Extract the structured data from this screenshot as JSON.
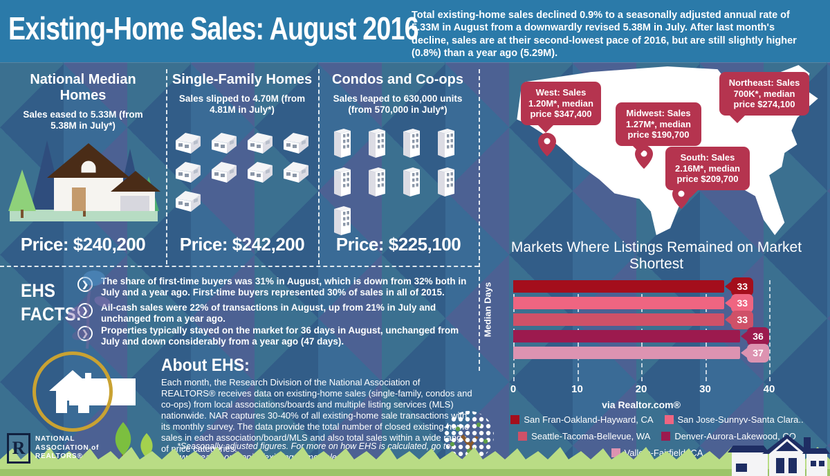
{
  "header": {
    "title": "Existing-Home Sales: August 2016",
    "intro": "Total existing-home sales declined 0.9% to a seasonally adjusted annual rate of 5.33M in August from a downwardly revised 5.38M in July. After last month's decline, sales are at their second-lowest pace of 2016, but are still slightly higher (0.8%) than a year ago (5.29M)."
  },
  "columns": [
    {
      "title": "National Median Homes",
      "subtitle": "Sales eased to 5.33M (from 5.38M in July*)",
      "price": "Price: $240,200"
    },
    {
      "title": "Single-Family Homes",
      "subtitle": "Sales slipped to 4.70M (from 4.81M in July*)",
      "price": "Price: $242,200"
    },
    {
      "title": "Condos and Co-ops",
      "subtitle": "Sales leaped to 630,000 units (from 570,000 in July*)",
      "price": "Price: $225,100"
    }
  ],
  "map": {
    "callouts": [
      {
        "region": "West",
        "text": "West: Sales 1.20M*, median price $347,400"
      },
      {
        "region": "Midwest",
        "text": "Midwest: Sales 1.27M*, median price $190,700"
      },
      {
        "region": "Northeast",
        "text": "Northeast: Sales 700K*, median price $274,100"
      },
      {
        "region": "South",
        "text": "South: Sales 2.16M*, median price $209,700"
      }
    ]
  },
  "chart_data": {
    "type": "bar",
    "orientation": "horizontal",
    "title": "Markets Where Listings Remained on Market Shortest",
    "ylabel": "Median Days",
    "source": "via Realtor.com®",
    "categories": [
      "San Fran-Oakland-Hayward, CA",
      "San Jose-Sunnyv-Santa Clara..",
      "Seattle-Tacoma-Bellevue, WA",
      "Denver-Aurora-Lakewood, CO",
      "Vallejo-Fairfield, CA"
    ],
    "values": [
      33,
      33,
      33,
      36,
      37
    ],
    "colors": [
      "#a40e1c",
      "#ef6581",
      "#cf5168",
      "#9c1a4e",
      "#dd93b1"
    ],
    "xlim": [
      0,
      40
    ],
    "xticks": [
      0,
      10,
      20,
      30,
      40
    ],
    "grid": true,
    "legend_position": "bottom"
  },
  "facts": {
    "label_line1": "EHS",
    "label_line2": "FACTS:",
    "items": [
      "The share of first-time buyers was 31% in August, which is down from 32% both in July and a year ago. First-time buyers represented 30% of sales in all of 2015.",
      "All-cash sales were 22% of transactions in August, up from 21% in July and unchanged from a year ago.",
      "Properties typically stayed on the market for 36 days in August, unchanged from July and down considerably from a year ago (47 days)."
    ]
  },
  "about": {
    "title": "About EHS:",
    "body": "Each month, the Research Division of the National Association of REALTORS® receives data on existing-home sales (single-family, condos and co-ops) from local associations/boards and multiple listing services (MLS) nationwide. NAR captures 30-40% of all existing-home sale transactions with its monthly survey. The data provide the total number of closed existing-home sales in each association/board/MLS and also total sales within a wide range of price categories.",
    "footnote": "*Seasonally adjusted figures. For more on how EHS is calculated, go to: www.realtor.org/topics/existing-home-sales"
  },
  "footer": {
    "nar": [
      "NATIONAL",
      "ASSOCIATION of",
      "REALTORS®"
    ],
    "nar_initial": "R"
  },
  "accent_colors": {
    "callout": "#b5344f",
    "header_band": "#2b7aa9",
    "gold": "#c9a232"
  }
}
